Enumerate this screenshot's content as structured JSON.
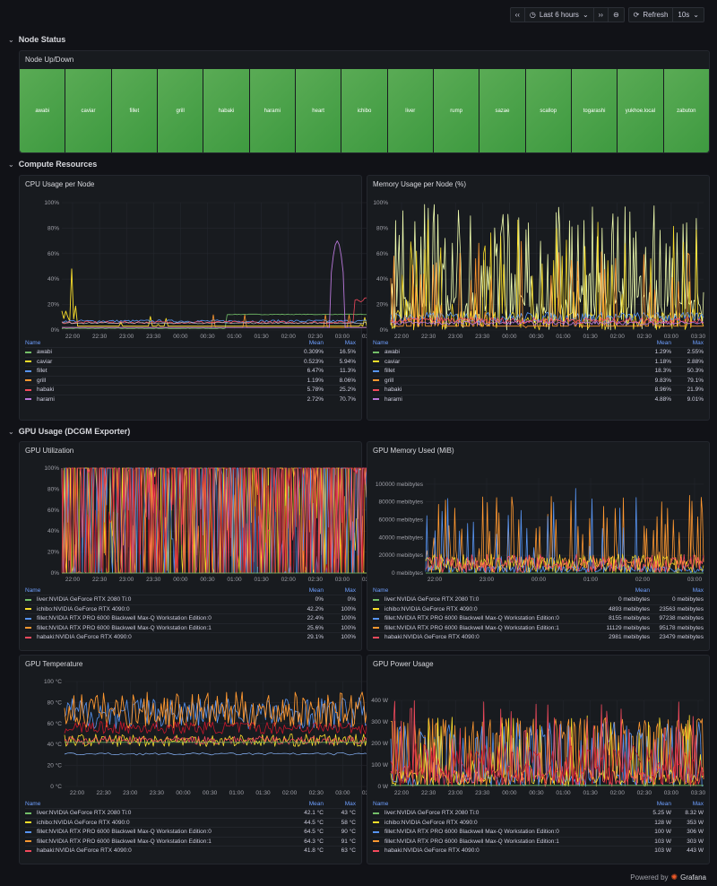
{
  "toolbar": {
    "prev": "‹‹",
    "time_range": "Last 6 hours",
    "next": "››",
    "zoom_out": "⊖",
    "refresh": "Refresh",
    "interval": "10s"
  },
  "rows": {
    "node_status": "Node Status",
    "compute": "Compute Resources",
    "gpu": "GPU Usage (DCGM Exporter)"
  },
  "node_panel": {
    "title": "Node Up/Down",
    "nodes": [
      "awabi",
      "caviar",
      "fillet",
      "grill",
      "habaki",
      "harami",
      "heart",
      "ichibo",
      "liver",
      "rump",
      "sazae",
      "scallop",
      "togarashi",
      "yukhoe.local",
      "zabuton"
    ],
    "color": "#56a64b"
  },
  "x_ticks": [
    "22:00",
    "22:30",
    "23:00",
    "23:30",
    "00:00",
    "00:30",
    "01:00",
    "01:30",
    "02:00",
    "02:30",
    "03:00",
    "03:30"
  ],
  "cpu": {
    "title": "CPU Usage per Node",
    "y_ticks": [
      "0%",
      "20%",
      "40%",
      "60%",
      "80%",
      "100%"
    ],
    "head": {
      "name": "Name",
      "mean": "Mean",
      "max": "Max"
    },
    "legend": [
      {
        "name": "awabi",
        "mean": "0.309%",
        "max": "16.5%",
        "color": "#73bf69"
      },
      {
        "name": "caviar",
        "mean": "0.523%",
        "max": "5.94%",
        "color": "#fade2a"
      },
      {
        "name": "fillet",
        "mean": "6.47%",
        "max": "11.3%",
        "color": "#5794f2"
      },
      {
        "name": "grill",
        "mean": "1.19%",
        "max": "8.06%",
        "color": "#ff9830"
      },
      {
        "name": "habaki",
        "mean": "5.78%",
        "max": "25.2%",
        "color": "#f2495c"
      },
      {
        "name": "harami",
        "mean": "2.72%",
        "max": "70.7%",
        "color": "#b877d9"
      }
    ]
  },
  "memory": {
    "title": "Memory Usage per Node (%)",
    "y_ticks": [
      "0%",
      "20%",
      "40%",
      "60%",
      "80%",
      "100%"
    ],
    "head": {
      "name": "Name",
      "mean": "Mean",
      "max": "Max"
    },
    "legend": [
      {
        "name": "awabi",
        "mean": "1.29%",
        "max": "2.55%",
        "color": "#73bf69"
      },
      {
        "name": "caviar",
        "mean": "1.18%",
        "max": "2.88%",
        "color": "#fade2a"
      },
      {
        "name": "fillet",
        "mean": "18.3%",
        "max": "50.3%",
        "color": "#5794f2"
      },
      {
        "name": "grill",
        "mean": "9.83%",
        "max": "79.1%",
        "color": "#ff9830"
      },
      {
        "name": "habaki",
        "mean": "8.96%",
        "max": "21.9%",
        "color": "#f2495c"
      },
      {
        "name": "harami",
        "mean": "4.88%",
        "max": "9.01%",
        "color": "#b877d9"
      }
    ]
  },
  "gpu_util": {
    "title": "GPU Utilization",
    "y_ticks": [
      "0%",
      "20%",
      "40%",
      "60%",
      "80%",
      "100%"
    ],
    "head": {
      "name": "Name",
      "mean": "Mean",
      "max": "Max"
    },
    "legend": [
      {
        "name": "liver:NVIDIA GeForce RTX 2080 Ti:0",
        "mean": "0%",
        "max": "0%",
        "color": "#73bf69"
      },
      {
        "name": "ichibo:NVIDIA GeForce RTX 4090:0",
        "mean": "42.2%",
        "max": "100%",
        "color": "#fade2a"
      },
      {
        "name": "fillet:NVIDIA RTX PRO 6000 Blackwell Max-Q Workstation Edition:0",
        "mean": "22.4%",
        "max": "100%",
        "color": "#5794f2"
      },
      {
        "name": "fillet:NVIDIA RTX PRO 6000 Blackwell Max-Q Workstation Edition:1",
        "mean": "25.6%",
        "max": "100%",
        "color": "#ff9830"
      },
      {
        "name": "habaki:NVIDIA GeForce RTX 4090:0",
        "mean": "29.1%",
        "max": "100%",
        "color": "#f2495c"
      }
    ]
  },
  "gpu_mem": {
    "title": "GPU Memory Used (MiB)",
    "y_ticks": [
      "0 mebibytes",
      "20000 mebibytes",
      "40000 mebibytes",
      "60000 mebibytes",
      "80000 mebibytes",
      "100000 mebibytes"
    ],
    "x_ticks": [
      "22:00",
      "23:00",
      "00:00",
      "01:00",
      "02:00",
      "03:00"
    ],
    "head": {
      "name": "Name",
      "mean": "Mean",
      "max": "Max"
    },
    "legend": [
      {
        "name": "liver:NVIDIA GeForce RTX 2080 Ti:0",
        "mean": "0 mebibytes",
        "max": "0 mebibytes",
        "color": "#73bf69"
      },
      {
        "name": "ichibo:NVIDIA GeForce RTX 4090:0",
        "mean": "4893 mebibytes",
        "max": "23563 mebibytes",
        "color": "#fade2a"
      },
      {
        "name": "fillet:NVIDIA RTX PRO 6000 Blackwell Max-Q Workstation Edition:0",
        "mean": "8155 mebibytes",
        "max": "97238 mebibytes",
        "color": "#5794f2"
      },
      {
        "name": "fillet:NVIDIA RTX PRO 6000 Blackwell Max-Q Workstation Edition:1",
        "mean": "11129 mebibytes",
        "max": "95178 mebibytes",
        "color": "#ff9830"
      },
      {
        "name": "habaki:NVIDIA GeForce RTX 4090:0",
        "mean": "2981 mebibytes",
        "max": "23479 mebibytes",
        "color": "#f2495c"
      }
    ]
  },
  "gpu_temp": {
    "title": "GPU Temperature",
    "y_ticks": [
      "0 °C",
      "20 °C",
      "40 °C",
      "60 °C",
      "80 °C",
      "100 °C"
    ],
    "head": {
      "name": "Name",
      "mean": "Mean",
      "max": "Max"
    },
    "legend": [
      {
        "name": "liver:NVIDIA GeForce RTX 2080 Ti:0",
        "mean": "42.1 °C",
        "max": "43 °C",
        "color": "#73bf69"
      },
      {
        "name": "ichibo:NVIDIA GeForce RTX 4090:0",
        "mean": "44.5 °C",
        "max": "58 °C",
        "color": "#fade2a"
      },
      {
        "name": "fillet:NVIDIA RTX PRO 6000 Blackwell Max-Q Workstation Edition:0",
        "mean": "64.5 °C",
        "max": "90 °C",
        "color": "#5794f2"
      },
      {
        "name": "fillet:NVIDIA RTX PRO 6000 Blackwell Max-Q Workstation Edition:1",
        "mean": "64.3 °C",
        "max": "91 °C",
        "color": "#ff9830"
      },
      {
        "name": "habaki:NVIDIA GeForce RTX 4090:0",
        "mean": "41.8 °C",
        "max": "63 °C",
        "color": "#f2495c"
      }
    ]
  },
  "gpu_power": {
    "title": "GPU Power Usage",
    "y_ticks": [
      "0 W",
      "100 W",
      "200 W",
      "300 W",
      "400 W"
    ],
    "head": {
      "name": "Name",
      "mean": "Mean",
      "max": "Max"
    },
    "legend": [
      {
        "name": "liver:NVIDIA GeForce RTX 2080 Ti:0",
        "mean": "5.25 W",
        "max": "8.32 W",
        "color": "#73bf69"
      },
      {
        "name": "ichibo:NVIDIA GeForce RTX 4090:0",
        "mean": "128 W",
        "max": "353 W",
        "color": "#fade2a"
      },
      {
        "name": "fillet:NVIDIA RTX PRO 6000 Blackwell Max-Q Workstation Edition:0",
        "mean": "100 W",
        "max": "306 W",
        "color": "#5794f2"
      },
      {
        "name": "fillet:NVIDIA RTX PRO 6000 Blackwell Max-Q Workstation Edition:1",
        "mean": "103 W",
        "max": "303 W",
        "color": "#ff9830"
      },
      {
        "name": "habaki:NVIDIA GeForce RTX 4090:0",
        "mean": "103 W",
        "max": "443 W",
        "color": "#f2495c"
      }
    ]
  },
  "footer": {
    "powered": "Powered by",
    "brand": "Grafana"
  }
}
